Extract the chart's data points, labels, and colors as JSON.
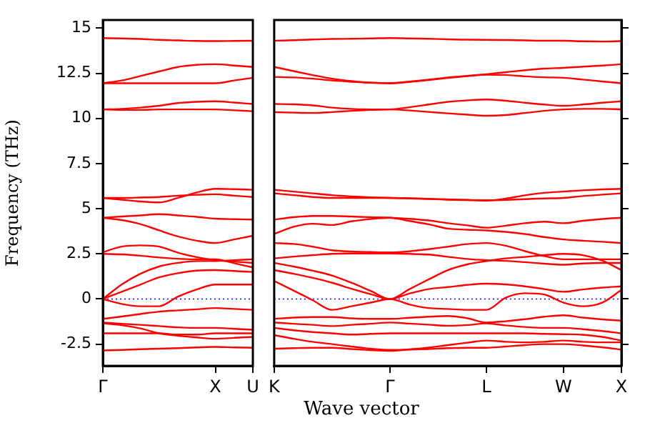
{
  "chart_data": [
    {
      "type": "line",
      "ylabel": "Frequency (THz)",
      "marker": "none",
      "line_style": "solid",
      "grid": false,
      "categories": [
        "Γ",
        null,
        null,
        null,
        null,
        null,
        "X",
        null,
        "U"
      ],
      "ylim": [
        -3.7,
        15.45
      ],
      "yticks": [
        -2.5,
        0,
        2.5,
        5,
        7.5,
        10,
        12.5,
        15
      ],
      "ref_lines": [
        {
          "axis": "y",
          "value": 0,
          "color": "#0000ff",
          "line_style": "dotted"
        }
      ],
      "series": [
        {
          "color": "#ff0000",
          "values": [
            14.45,
            14.43,
            14.4,
            14.35,
            14.32,
            14.29,
            14.28,
            14.29,
            14.3
          ]
        },
        {
          "color": "#ff0000",
          "values": [
            11.95,
            12.1,
            12.35,
            12.6,
            12.85,
            12.97,
            13.0,
            12.93,
            12.85
          ]
        },
        {
          "color": "#ff0000",
          "values": [
            11.95,
            11.95,
            11.95,
            11.95,
            11.95,
            11.95,
            11.95,
            12.1,
            12.25
          ]
        },
        {
          "color": "#ff0000",
          "values": [
            10.5,
            10.53,
            10.6,
            10.7,
            10.85,
            10.92,
            10.95,
            10.88,
            10.8
          ]
        },
        {
          "color": "#ff0000",
          "values": [
            10.5,
            10.47,
            10.47,
            10.5,
            10.5,
            10.5,
            10.5,
            10.45,
            10.4
          ]
        },
        {
          "color": "#ff0000",
          "values": [
            5.6,
            5.5,
            5.4,
            5.35,
            5.6,
            5.9,
            6.1,
            6.08,
            6.05
          ]
        },
        {
          "color": "#ff0000",
          "values": [
            5.6,
            5.6,
            5.62,
            5.65,
            5.72,
            5.77,
            5.8,
            5.72,
            5.65
          ]
        },
        {
          "color": "#ff0000",
          "values": [
            4.5,
            4.57,
            4.63,
            4.7,
            4.63,
            4.55,
            4.45,
            4.42,
            4.4
          ]
        },
        {
          "color": "#ff0000",
          "values": [
            4.5,
            4.37,
            4.15,
            3.8,
            3.47,
            3.23,
            3.1,
            3.3,
            3.5
          ]
        },
        {
          "color": "#ff0000",
          "values": [
            2.6,
            2.9,
            2.97,
            2.9,
            2.57,
            2.32,
            2.15,
            2.07,
            2.0
          ]
        },
        {
          "color": "#ff0000",
          "values": [
            2.5,
            2.47,
            2.4,
            2.3,
            2.23,
            2.2,
            2.2,
            1.98,
            1.75
          ]
        },
        {
          "color": "#ff0000",
          "values": [
            0,
            0.8,
            1.4,
            1.8,
            2.0,
            2.1,
            2.1,
            2.15,
            2.2
          ]
        },
        {
          "color": "#ff0000",
          "values": [
            0,
            0.4,
            0.8,
            1.2,
            1.43,
            1.57,
            1.6,
            1.55,
            1.5
          ]
        },
        {
          "color": "#ff0000",
          "values": [
            0,
            -0.27,
            -0.4,
            -0.4,
            0.13,
            0.53,
            0.8,
            0.8,
            0.8
          ]
        },
        {
          "color": "#ff0000",
          "values": [
            -1.1,
            -0.97,
            -0.83,
            -0.7,
            -0.63,
            -0.57,
            -0.5,
            -0.55,
            -0.6
          ]
        },
        {
          "color": "#ff0000",
          "values": [
            -1.3,
            -1.37,
            -1.43,
            -1.5,
            -1.57,
            -1.6,
            -1.6,
            -1.65,
            -1.7
          ]
        },
        {
          "color": "#ff0000",
          "values": [
            -1.9,
            -1.9,
            -1.9,
            -1.9,
            -1.97,
            -1.97,
            -1.9,
            -1.9,
            -1.9
          ]
        },
        {
          "color": "#ff0000",
          "values": [
            -1.35,
            -1.45,
            -1.63,
            -1.9,
            -2.03,
            -2.13,
            -2.2,
            -2.15,
            -2.1
          ]
        },
        {
          "color": "#ff0000",
          "values": [
            -2.85,
            -2.82,
            -2.78,
            -2.75,
            -2.72,
            -2.68,
            -2.65,
            -2.68,
            -2.7
          ]
        }
      ]
    },
    {
      "type": "line",
      "xlabel": "Wave vector",
      "marker": "none",
      "line_style": "solid",
      "grid": false,
      "tick_labels": "x",
      "categories": [
        "K",
        null,
        null,
        null,
        null,
        null,
        "Γ",
        null,
        null,
        null,
        null,
        "L",
        null,
        null,
        null,
        "W",
        null,
        null,
        "X"
      ],
      "ylim": [
        -3.7,
        15.45
      ],
      "yticks": [
        {
          "value": -2.5,
          "label": null
        },
        {
          "value": 0,
          "label": null
        },
        {
          "value": 2.5,
          "label": null
        },
        {
          "value": 5,
          "label": null
        },
        {
          "value": 7.5,
          "label": null
        },
        {
          "value": 10,
          "label": null
        },
        {
          "value": 12.5,
          "label": null
        },
        {
          "value": 15,
          "label": null
        }
      ],
      "ref_lines": [
        {
          "axis": "y",
          "value": 0,
          "color": "#0000ff",
          "line_style": "dotted"
        }
      ],
      "series": [
        {
          "color": "#ff0000",
          "values": [
            14.3,
            14.33,
            14.37,
            14.4,
            14.41,
            14.43,
            14.45,
            14.43,
            14.41,
            14.38,
            14.36,
            14.35,
            14.34,
            14.32,
            14.3,
            14.3,
            14.27,
            14.26,
            14.28
          ]
        },
        {
          "color": "#ff0000",
          "values": [
            12.85,
            12.62,
            12.4,
            12.2,
            12.07,
            11.98,
            11.95,
            12.04,
            12.15,
            12.27,
            12.36,
            12.45,
            12.56,
            12.67,
            12.76,
            12.8,
            12.87,
            12.93,
            13.0
          ]
        },
        {
          "color": "#ff0000",
          "values": [
            12.3,
            12.27,
            12.2,
            12.1,
            12.03,
            11.98,
            11.95,
            12.02,
            12.12,
            12.24,
            12.34,
            12.42,
            12.41,
            12.33,
            12.28,
            12.25,
            12.15,
            12.05,
            11.95
          ]
        },
        {
          "color": "#ff0000",
          "values": [
            10.8,
            10.78,
            10.72,
            10.6,
            10.53,
            10.5,
            10.5,
            10.62,
            10.77,
            10.92,
            11.0,
            11.05,
            10.98,
            10.87,
            10.77,
            10.7,
            10.77,
            10.87,
            10.95
          ]
        },
        {
          "color": "#ff0000",
          "values": [
            10.35,
            10.32,
            10.3,
            10.35,
            10.42,
            10.47,
            10.5,
            10.44,
            10.36,
            10.28,
            10.21,
            10.15,
            10.19,
            10.3,
            10.42,
            10.5,
            10.53,
            10.53,
            10.5
          ]
        },
        {
          "color": "#ff0000",
          "values": [
            6.05,
            5.95,
            5.85,
            5.75,
            5.68,
            5.63,
            5.6,
            5.57,
            5.54,
            5.5,
            5.48,
            5.45,
            5.56,
            5.74,
            5.88,
            5.95,
            6.02,
            6.07,
            6.1
          ]
        },
        {
          "color": "#ff0000",
          "values": [
            5.85,
            5.75,
            5.65,
            5.6,
            5.6,
            5.6,
            5.6,
            5.58,
            5.55,
            5.52,
            5.49,
            5.47,
            5.49,
            5.53,
            5.57,
            5.6,
            5.7,
            5.78,
            5.85
          ]
        },
        {
          "color": "#ff0000",
          "values": [
            4.4,
            4.53,
            4.6,
            4.6,
            4.57,
            4.53,
            4.5,
            4.44,
            4.35,
            4.2,
            4.08,
            3.95,
            4.06,
            4.2,
            4.28,
            4.2,
            4.33,
            4.43,
            4.5
          ]
        },
        {
          "color": "#ff0000",
          "values": [
            3.6,
            4.0,
            4.17,
            4.1,
            4.3,
            4.43,
            4.5,
            4.32,
            4.14,
            3.9,
            3.84,
            3.8,
            3.72,
            3.6,
            3.43,
            3.3,
            3.23,
            3.17,
            3.1
          ]
        },
        {
          "color": "#ff0000",
          "values": [
            3.1,
            3.05,
            2.9,
            2.7,
            2.63,
            2.6,
            2.58,
            2.64,
            2.76,
            2.9,
            3.04,
            3.1,
            2.95,
            2.65,
            2.38,
            2.2,
            2.2,
            2.2,
            2.2
          ]
        },
        {
          "color": "#ff0000",
          "values": [
            2.25,
            2.35,
            2.43,
            2.5,
            2.52,
            2.52,
            2.52,
            2.5,
            2.46,
            2.34,
            2.22,
            2.15,
            2.11,
            2.04,
            1.96,
            1.9,
            1.97,
            2.0,
            2.0
          ]
        },
        {
          "color": "#ff0000",
          "values": [
            2.0,
            1.8,
            1.57,
            1.3,
            0.9,
            0.45,
            0,
            0.54,
            1.08,
            1.6,
            1.92,
            2.1,
            2.25,
            2.33,
            2.43,
            2.5,
            2.43,
            2.13,
            1.6
          ]
        },
        {
          "color": "#ff0000",
          "values": [
            1.6,
            1.4,
            1.17,
            0.9,
            0.57,
            0.27,
            0,
            0.3,
            0.55,
            0.66,
            0.78,
            0.85,
            0.81,
            0.7,
            0.55,
            0.4,
            0.53,
            0.63,
            0.7
          ]
        },
        {
          "color": "#ff0000",
          "values": [
            1.0,
            0.47,
            -0.07,
            -0.6,
            -0.4,
            -0.2,
            0,
            -0.3,
            -0.5,
            -0.55,
            -0.6,
            -0.6,
            0.07,
            0.32,
            0.25,
            -0.2,
            -0.4,
            -0.2,
            0.5
          ]
        },
        {
          "color": "#ff0000",
          "values": [
            -1.1,
            -1.03,
            -1.0,
            -1.0,
            -1.07,
            -1.1,
            -1.1,
            -1.04,
            -0.98,
            -0.94,
            -1.06,
            -1.3,
            -1.23,
            -1.12,
            -0.98,
            -0.9,
            -1.03,
            -1.13,
            -1.2
          ]
        },
        {
          "color": "#ff0000",
          "values": [
            -1.3,
            -1.37,
            -1.43,
            -1.5,
            -1.43,
            -1.37,
            -1.3,
            -1.36,
            -1.42,
            -1.48,
            -1.44,
            -1.35,
            -1.46,
            -1.55,
            -1.6,
            -1.6,
            -1.67,
            -1.77,
            -1.9
          ]
        },
        {
          "color": "#ff0000",
          "values": [
            -1.6,
            -1.73,
            -1.83,
            -1.9,
            -1.97,
            -1.93,
            -1.9,
            -1.9,
            -1.9,
            -1.9,
            -1.9,
            -1.9,
            -1.9,
            -1.9,
            -1.93,
            -1.95,
            -1.98,
            -2.1,
            -2.3
          ]
        },
        {
          "color": "#ff0000",
          "values": [
            -2.0,
            -2.2,
            -2.37,
            -2.5,
            -2.63,
            -2.75,
            -2.82,
            -2.8,
            -2.77,
            -2.72,
            -2.7,
            -2.7,
            -2.63,
            -2.55,
            -2.5,
            -2.5,
            -2.57,
            -2.67,
            -2.8
          ]
        },
        {
          "color": "#ff0000",
          "values": [
            -2.75,
            -2.72,
            -2.7,
            -2.7,
            -2.77,
            -2.83,
            -2.87,
            -2.79,
            -2.69,
            -2.55,
            -2.42,
            -2.3,
            -2.37,
            -2.4,
            -2.37,
            -2.3,
            -2.37,
            -2.4,
            -2.4
          ]
        }
      ]
    }
  ]
}
